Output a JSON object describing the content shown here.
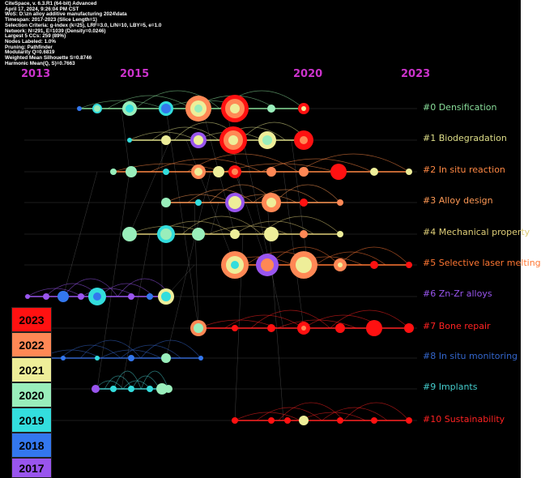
{
  "header": {
    "lines": [
      "CiteSpace, v. 6.3.R1 (64-bit) Advanced",
      "April 17, 2024, 9:26:04 PM CST",
      "WoS: D:\\zn alloy additive manufacturing 2024\\data",
      "Timespan: 2017-2023 (Slice Length=1)",
      "Selection Criteria: g-index (k=25), LRF=3.0, L/N=10, LBY=5, e=1.0",
      "Network: N=291, E=1039 (Density=0.0246)",
      "Largest 5 CCs: 259 (89%)",
      "Nodes Labeled: 1.0%",
      "Pruning: Pathfinder",
      "Modularity Q=0.6819",
      "Weighted Mean Silhouette S=0.8746",
      "Harmonic Mean(Q, S)=0.7663"
    ]
  },
  "timeline": {
    "years": [
      "2013",
      "2015",
      "2020",
      "2023"
    ],
    "year_color": "#cc33cc"
  },
  "clusters": [
    {
      "id": 0,
      "label": "#0 Densification",
      "color": "#88dd99"
    },
    {
      "id": 1,
      "label": "#1 Biodegradation",
      "color": "#dddd88"
    },
    {
      "id": 2,
      "label": "#2 In situ reaction",
      "color": "#ff8844"
    },
    {
      "id": 3,
      "label": "#3 Alloy design",
      "color": "#ff9955"
    },
    {
      "id": 4,
      "label": "#4 Mechanical property",
      "color": "#ddcc77"
    },
    {
      "id": 5,
      "label": "#5 Selective laser melting",
      "color": "#ff7733"
    },
    {
      "id": 6,
      "label": "#6 Zn-Zr alloys",
      "color": "#9955ee"
    },
    {
      "id": 7,
      "label": "#7 Bone repair",
      "color": "#ff2222"
    },
    {
      "id": 8,
      "label": "#8 In situ monitoring",
      "color": "#3366cc"
    },
    {
      "id": 9,
      "label": "#9 Implants",
      "color": "#44cccc"
    },
    {
      "id": 10,
      "label": "#10 Sustainability",
      "color": "#ff2222"
    }
  ],
  "legend": [
    {
      "year": "2023",
      "color": "#ff1111"
    },
    {
      "year": "2022",
      "color": "#ff8855"
    },
    {
      "year": "2021",
      "color": "#eeee99"
    },
    {
      "year": "2020",
      "color": "#99eebb"
    },
    {
      "year": "2019",
      "color": "#33dddd"
    },
    {
      "year": "2018",
      "color": "#3377ee"
    },
    {
      "year": "2017",
      "color": "#9955ee"
    }
  ]
}
